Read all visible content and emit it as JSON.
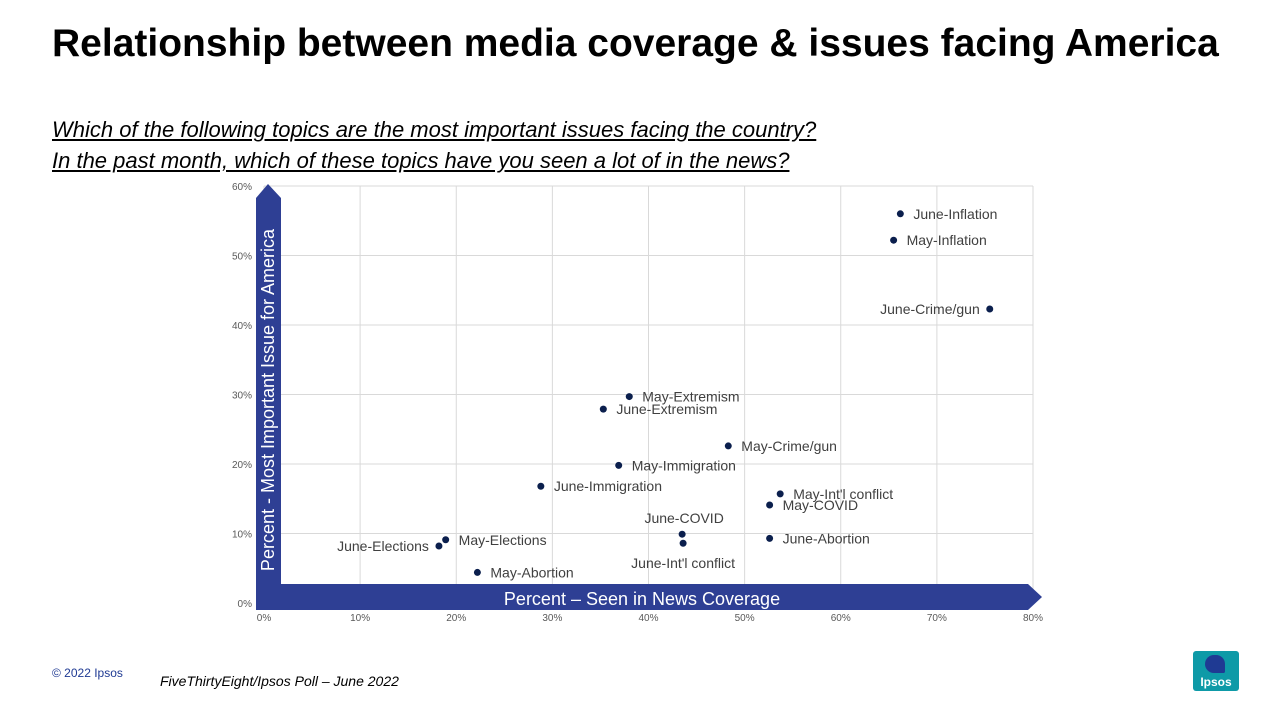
{
  "title": "Relationship between media coverage & issues facing America",
  "questions": [
    "Which of the following topics are the most important issues facing the country?",
    "In the past month, which of these topics have you seen a lot of in the news?"
  ],
  "footer": {
    "copyright": "© 2022 Ipsos",
    "source": "FiveThirtyEight/Ipsos Poll – June 2022",
    "logo_text": "Ipsos"
  },
  "colors": {
    "point": "#0b1f4d",
    "axis_arrow": "#2e3f94",
    "grid": "#d9d9d9"
  },
  "chart_data": {
    "type": "scatter",
    "xlabel": "Percent – Seen in News Coverage",
    "ylabel": "Percent - Most Important Issue for America",
    "xlim": [
      0,
      80
    ],
    "ylim": [
      0,
      60
    ],
    "x_ticks": [
      "0%",
      "10%",
      "20%",
      "30%",
      "40%",
      "50%",
      "60%",
      "70%",
      "80%"
    ],
    "y_ticks": [
      "0%",
      "10%",
      "20%",
      "30%",
      "40%",
      "50%",
      "60%"
    ],
    "grid": true,
    "points": [
      {
        "label": "June-Inflation",
        "x": 66.2,
        "y": 56,
        "label_pos": "right"
      },
      {
        "label": "May-Inflation",
        "x": 65.5,
        "y": 52.2,
        "label_pos": "right"
      },
      {
        "label": "June-Crime/gun",
        "x": 75.5,
        "y": 42.3,
        "label_pos": "left"
      },
      {
        "label": "May-Extremism",
        "x": 38,
        "y": 29.7,
        "label_pos": "right"
      },
      {
        "label": "June-Extremism",
        "x": 35.3,
        "y": 27.9,
        "label_pos": "right"
      },
      {
        "label": "May-Crime/gun",
        "x": 48.3,
        "y": 22.6,
        "label_pos": "right"
      },
      {
        "label": "May-Immigration",
        "x": 36.9,
        "y": 19.8,
        "label_pos": "right"
      },
      {
        "label": "June-Immigration",
        "x": 28.8,
        "y": 16.8,
        "label_pos": "right"
      },
      {
        "label": "May-Int'l  conflict",
        "x": 53.7,
        "y": 15.7,
        "label_pos": "right"
      },
      {
        "label": "May-COVID",
        "x": 52.6,
        "y": 14.1,
        "label_pos": "right"
      },
      {
        "label": "June-COVID",
        "x": 43.5,
        "y": 9.9,
        "label_pos": "above"
      },
      {
        "label": "June-Abortion",
        "x": 52.6,
        "y": 9.3,
        "label_pos": "right"
      },
      {
        "label": "June-Int'l  conflict",
        "x": 43.6,
        "y": 8.6,
        "label_pos": "below"
      },
      {
        "label": "May-Elections",
        "x": 18.9,
        "y": 9.1,
        "label_pos": "right"
      },
      {
        "label": "June-Elections",
        "x": 18.2,
        "y": 8.2,
        "label_pos": "left"
      },
      {
        "label": "May-Abortion",
        "x": 22.2,
        "y": 4.4,
        "label_pos": "right"
      }
    ]
  }
}
